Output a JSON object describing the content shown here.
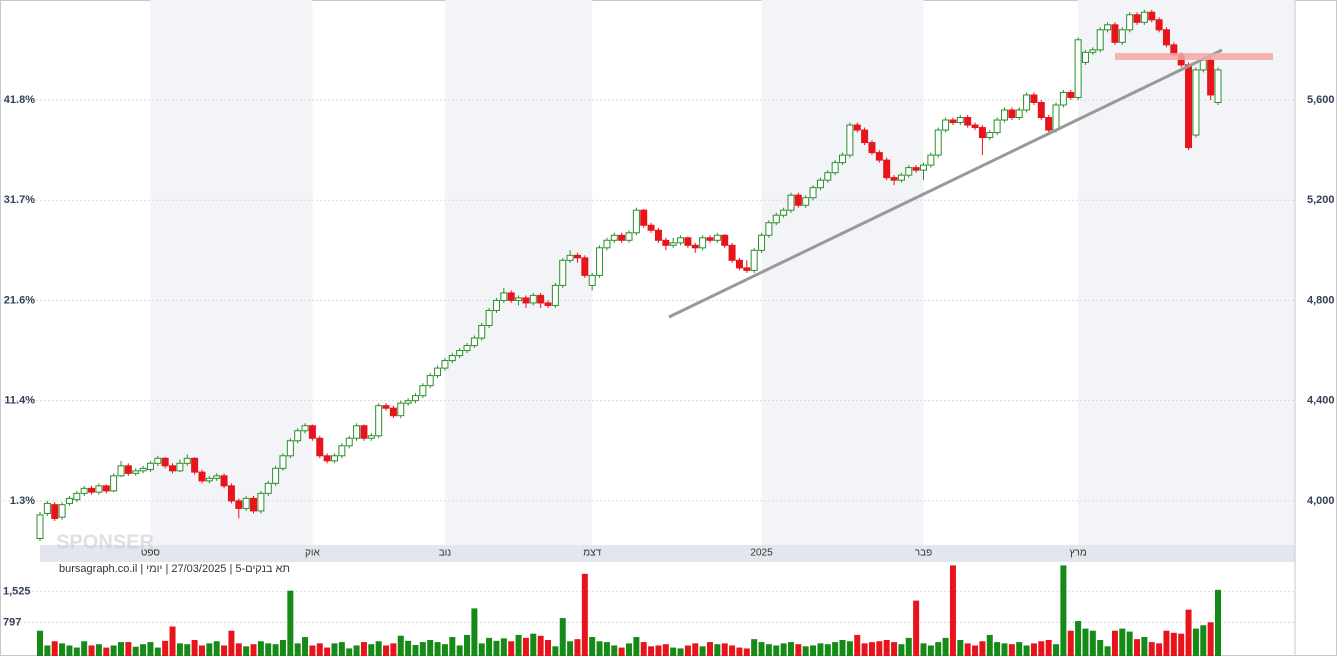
{
  "chart_data": {
    "type": "candlestick",
    "subtitle": "bursagraph.co.il | תא בנקים-5 | 27/03/2025 | יומי",
    "watermark": "SPONSER",
    "up_color": "#2a8f2a",
    "down_color": "#e8141c",
    "grid": true,
    "xlim": [
      0,
      160
    ],
    "xticks": [
      {
        "value": 15,
        "label": "ספט"
      },
      {
        "value": 37,
        "label": "אוק"
      },
      {
        "value": 55,
        "label": "נוב"
      },
      {
        "value": 75,
        "label": "דצמ"
      },
      {
        "value": 98,
        "label": "2025"
      },
      {
        "value": 120,
        "label": "פבר"
      },
      {
        "value": 141,
        "label": "מרץ"
      }
    ],
    "ylim": [
      3824,
      5991
    ],
    "yticks": [
      {
        "value": 4000,
        "label": "4,000"
      },
      {
        "value": 4400,
        "label": "4,400"
      },
      {
        "value": 4800,
        "label": "4,800"
      },
      {
        "value": 5200,
        "label": "5,200"
      },
      {
        "value": 5600,
        "label": "5,600"
      }
    ],
    "yticks_left": [
      {
        "value": 4000,
        "label": "1.3%"
      },
      {
        "value": 4400,
        "label": "11.4%"
      },
      {
        "value": 4800,
        "label": "21.6%"
      },
      {
        "value": 5200,
        "label": "31.7%"
      },
      {
        "value": 5600,
        "label": "41.8%"
      }
    ],
    "ohlc": [
      [
        3850,
        3955,
        3840,
        3944
      ],
      [
        3950,
        4000,
        3940,
        3990
      ],
      [
        3985,
        3995,
        3920,
        3930
      ],
      [
        3935,
        3995,
        3925,
        3985
      ],
      [
        3990,
        4020,
        3980,
        4010
      ],
      [
        4005,
        4040,
        3995,
        4030
      ],
      [
        4030,
        4060,
        4020,
        4050
      ],
      [
        4050,
        4060,
        4025,
        4035
      ],
      [
        4035,
        4070,
        4025,
        4060
      ],
      [
        4060,
        4065,
        4030,
        4040
      ],
      [
        4040,
        4110,
        4035,
        4100
      ],
      [
        4100,
        4160,
        4095,
        4140
      ],
      [
        4140,
        4150,
        4100,
        4110
      ],
      [
        4110,
        4130,
        4100,
        4120
      ],
      [
        4120,
        4140,
        4110,
        4130
      ],
      [
        4125,
        4160,
        4115,
        4150
      ],
      [
        4150,
        4180,
        4140,
        4170
      ],
      [
        4170,
        4175,
        4130,
        4140
      ],
      [
        4140,
        4150,
        4110,
        4120
      ],
      [
        4120,
        4165,
        4115,
        4150
      ],
      [
        4150,
        4185,
        4140,
        4170
      ],
      [
        4170,
        4175,
        4105,
        4115
      ],
      [
        4115,
        4125,
        4070,
        4080
      ],
      [
        4080,
        4100,
        4070,
        4090
      ],
      [
        4090,
        4110,
        4080,
        4100
      ],
      [
        4100,
        4110,
        4050,
        4060
      ],
      [
        4060,
        4070,
        3990,
        4000
      ],
      [
        4000,
        4010,
        3930,
        3970
      ],
      [
        3970,
        4020,
        3960,
        4010
      ],
      [
        4010,
        4020,
        3950,
        3960
      ],
      [
        3960,
        4040,
        3950,
        4030
      ],
      [
        4030,
        4080,
        4020,
        4070
      ],
      [
        4070,
        4140,
        4060,
        4130
      ],
      [
        4130,
        4190,
        4120,
        4180
      ],
      [
        4180,
        4250,
        4170,
        4240
      ],
      [
        4240,
        4290,
        4230,
        4280
      ],
      [
        4280,
        4310,
        4270,
        4300
      ],
      [
        4300,
        4305,
        4240,
        4250
      ],
      [
        4250,
        4260,
        4170,
        4180
      ],
      [
        4180,
        4190,
        4150,
        4160
      ],
      [
        4160,
        4190,
        4150,
        4180
      ],
      [
        4180,
        4230,
        4170,
        4220
      ],
      [
        4220,
        4260,
        4210,
        4250
      ],
      [
        4250,
        4310,
        4240,
        4300
      ],
      [
        4300,
        4305,
        4240,
        4250
      ],
      [
        4250,
        4270,
        4240,
        4260
      ],
      [
        4260,
        4390,
        4250,
        4380
      ],
      [
        4380,
        4390,
        4360,
        4370
      ],
      [
        4370,
        4380,
        4330,
        4340
      ],
      [
        4340,
        4400,
        4330,
        4390
      ],
      [
        4390,
        4410,
        4380,
        4400
      ],
      [
        4400,
        4430,
        4390,
        4420
      ],
      [
        4420,
        4470,
        4410,
        4460
      ],
      [
        4460,
        4510,
        4450,
        4500
      ],
      [
        4500,
        4540,
        4490,
        4530
      ],
      [
        4530,
        4570,
        4520,
        4560
      ],
      [
        4560,
        4590,
        4550,
        4580
      ],
      [
        4580,
        4610,
        4570,
        4600
      ],
      [
        4600,
        4630,
        4590,
        4620
      ],
      [
        4620,
        4660,
        4610,
        4650
      ],
      [
        4650,
        4710,
        4640,
        4700
      ],
      [
        4700,
        4770,
        4690,
        4760
      ],
      [
        4760,
        4810,
        4750,
        4800
      ],
      [
        4800,
        4850,
        4790,
        4830
      ],
      [
        4830,
        4840,
        4790,
        4800
      ],
      [
        4800,
        4820,
        4780,
        4810
      ],
      [
        4810,
        4820,
        4770,
        4790
      ],
      [
        4790,
        4830,
        4780,
        4820
      ],
      [
        4820,
        4830,
        4770,
        4790
      ],
      [
        4790,
        4800,
        4770,
        4780
      ],
      [
        4780,
        4870,
        4770,
        4860
      ],
      [
        4860,
        4970,
        4850,
        4960
      ],
      [
        4960,
        5000,
        4950,
        4980
      ],
      [
        4980,
        4990,
        4950,
        4970
      ],
      [
        4970,
        4980,
        4890,
        4900
      ],
      [
        4860,
        4910,
        4840,
        4900
      ],
      [
        4900,
        5020,
        4890,
        5010
      ],
      [
        5010,
        5050,
        5000,
        5040
      ],
      [
        5040,
        5070,
        5030,
        5060
      ],
      [
        5060,
        5070,
        5030,
        5040
      ],
      [
        5040,
        5080,
        5030,
        5070
      ],
      [
        5070,
        5170,
        5060,
        5160
      ],
      [
        5160,
        5165,
        5090,
        5100
      ],
      [
        5100,
        5110,
        5070,
        5080
      ],
      [
        5080,
        5090,
        5030,
        5040
      ],
      [
        5040,
        5050,
        5000,
        5020
      ],
      [
        5020,
        5050,
        5010,
        5030
      ],
      [
        5030,
        5060,
        5020,
        5050
      ],
      [
        5050,
        5055,
        5010,
        5020
      ],
      [
        5020,
        5030,
        4990,
        5010
      ],
      [
        5010,
        5060,
        5000,
        5050
      ],
      [
        5050,
        5060,
        5030,
        5040
      ],
      [
        5040,
        5070,
        5030,
        5060
      ],
      [
        5060,
        5065,
        5010,
        5020
      ],
      [
        5020,
        5030,
        4950,
        4960
      ],
      [
        4960,
        4970,
        4920,
        4930
      ],
      [
        4930,
        4960,
        4910,
        4920
      ],
      [
        4920,
        5010,
        4910,
        5000
      ],
      [
        5000,
        5070,
        4990,
        5060
      ],
      [
        5060,
        5120,
        5050,
        5110
      ],
      [
        5110,
        5150,
        5100,
        5140
      ],
      [
        5140,
        5170,
        5130,
        5160
      ],
      [
        5160,
        5230,
        5150,
        5220
      ],
      [
        5220,
        5230,
        5170,
        5180
      ],
      [
        5180,
        5220,
        5170,
        5210
      ],
      [
        5210,
        5260,
        5200,
        5250
      ],
      [
        5250,
        5290,
        5240,
        5280
      ],
      [
        5280,
        5320,
        5270,
        5310
      ],
      [
        5310,
        5360,
        5300,
        5350
      ],
      [
        5350,
        5390,
        5340,
        5380
      ],
      [
        5380,
        5510,
        5370,
        5500
      ],
      [
        5500,
        5510,
        5470,
        5480
      ],
      [
        5480,
        5490,
        5420,
        5430
      ],
      [
        5430,
        5440,
        5380,
        5390
      ],
      [
        5390,
        5400,
        5350,
        5360
      ],
      [
        5360,
        5370,
        5280,
        5290
      ],
      [
        5290,
        5300,
        5260,
        5280
      ],
      [
        5280,
        5310,
        5270,
        5300
      ],
      [
        5300,
        5340,
        5290,
        5330
      ],
      [
        5330,
        5340,
        5310,
        5320
      ],
      [
        5320,
        5350,
        5280,
        5340
      ],
      [
        5340,
        5390,
        5330,
        5380
      ],
      [
        5380,
        5490,
        5370,
        5480
      ],
      [
        5480,
        5530,
        5470,
        5520
      ],
      [
        5520,
        5530,
        5500,
        5510
      ],
      [
        5510,
        5540,
        5500,
        5530
      ],
      [
        5530,
        5540,
        5490,
        5500
      ],
      [
        5500,
        5510,
        5480,
        5490
      ],
      [
        5490,
        5500,
        5380,
        5450
      ],
      [
        5450,
        5480,
        5440,
        5470
      ],
      [
        5470,
        5530,
        5460,
        5520
      ],
      [
        5520,
        5570,
        5510,
        5560
      ],
      [
        5560,
        5570,
        5520,
        5530
      ],
      [
        5530,
        5570,
        5520,
        5560
      ],
      [
        5560,
        5630,
        5550,
        5620
      ],
      [
        5620,
        5630,
        5580,
        5590
      ],
      [
        5590,
        5600,
        5520,
        5530
      ],
      [
        5530,
        5540,
        5470,
        5480
      ],
      [
        5480,
        5590,
        5470,
        5580
      ],
      [
        5580,
        5640,
        5570,
        5630
      ],
      [
        5630,
        5640,
        5600,
        5610
      ],
      [
        5610,
        5850,
        5600,
        5840
      ],
      [
        5750,
        5800,
        5740,
        5790
      ],
      [
        5790,
        5810,
        5780,
        5800
      ],
      [
        5800,
        5890,
        5790,
        5880
      ],
      [
        5880,
        5910,
        5870,
        5900
      ],
      [
        5900,
        5910,
        5820,
        5830
      ],
      [
        5830,
        5890,
        5820,
        5880
      ],
      [
        5880,
        5950,
        5870,
        5940
      ],
      [
        5940,
        5950,
        5900,
        5910
      ],
      [
        5910,
        5960,
        5900,
        5950
      ],
      [
        5950,
        5960,
        5910,
        5920
      ],
      [
        5920,
        5930,
        5870,
        5880
      ],
      [
        5880,
        5890,
        5810,
        5820
      ],
      [
        5820,
        5830,
        5770,
        5780
      ],
      [
        5780,
        5790,
        5730,
        5740
      ],
      [
        5740,
        5750,
        5400,
        5410
      ],
      [
        5460,
        5730,
        5450,
        5720
      ],
      [
        5720,
        5770,
        5710,
        5760
      ],
      [
        5760,
        5770,
        5600,
        5620
      ],
      [
        5590,
        5730,
        5580,
        5720
      ]
    ],
    "volume": {
      "ylim": [
        0,
        2160
      ],
      "yticks": [
        797,
        {
          "value": 1525,
          "label": "1,525"
        }
      ],
      "values": [
        600,
        250,
        350,
        300,
        250,
        200,
        350,
        250,
        280,
        200,
        250,
        330,
        330,
        220,
        280,
        330,
        200,
        360,
        700,
        300,
        280,
        380,
        250,
        300,
        350,
        250,
        600,
        300,
        230,
        280,
        350,
        300,
        280,
        380,
        1550,
        300,
        450,
        250,
        300,
        200,
        300,
        330,
        180,
        250,
        330,
        280,
        350,
        250,
        300,
        480,
        360,
        260,
        330,
        380,
        330,
        280,
        450,
        250,
        500,
        1130,
        300,
        430,
        360,
        420,
        350,
        500,
        430,
        530,
        480,
        380,
        230,
        900,
        350,
        400,
        1950,
        450,
        350,
        330,
        250,
        200,
        300,
        450,
        330,
        230,
        250,
        280,
        200,
        180,
        250,
        300,
        230,
        330,
        280,
        300,
        250,
        200,
        180,
        400,
        330,
        280,
        250,
        300,
        330,
        280,
        230,
        250,
        300,
        280,
        330,
        380,
        350,
        500,
        300,
        330,
        350,
        380,
        330,
        280,
        430,
        1315,
        300,
        250,
        330,
        430,
        2150,
        380,
        300,
        250,
        350,
        500,
        330,
        300,
        280,
        330,
        250,
        300,
        350,
        380,
        280,
        2150,
        600,
        830,
        650,
        600,
        380,
        230,
        600,
        650,
        580,
        400,
        450,
        330,
        300,
        600,
        550,
        530,
        1100,
        650,
        730,
        800,
        1570
      ]
    }
  }
}
